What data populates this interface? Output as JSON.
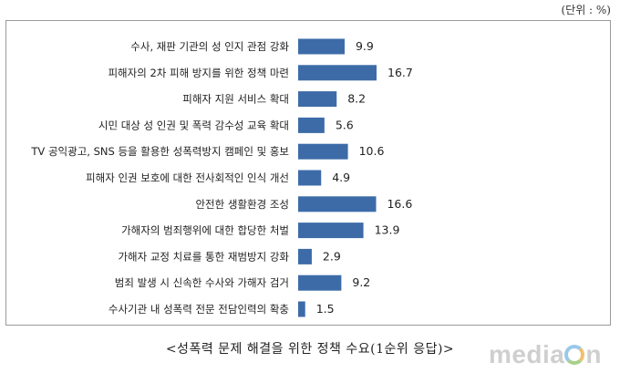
{
  "unit_label": "(단위 : %)",
  "caption": "<성폭력 문제 해결을 위한 정책 수요(1순위 응답)>",
  "watermark": "mediaon",
  "colors": {
    "bar": "#3d6ba8",
    "border": "#9a9a9a",
    "text": "#222222"
  },
  "chart_data": {
    "type": "bar",
    "orientation": "horizontal",
    "title": "성폭력 문제 해결을 위한 정책 수요(1순위 응답)",
    "xlabel": "",
    "ylabel": "",
    "unit": "%",
    "xlim": [
      0,
      20
    ],
    "categories": [
      "수사, 재판 기관의 성 인지 관점 강화",
      "피해자의 2차 피해 방지를 위한 정책 마련",
      "피해자 지원 서비스 확대",
      "시민 대상 성 인권 및 폭력 감수성 교육 확대",
      "TV 공익광고, SNS 등을 활용한 성폭력방지 캠페인 및 홍보",
      "피해자 인권 보호에 대한 전사회적인 인식 개선",
      "안전한 생활환경 조성",
      "가해자의 범죄행위에 대한 합당한 처벌",
      "가해자 교정 치료를 통한 재범방지 강화",
      "범죄 발생 시 신속한 수사와 가해자 검거",
      "수사기관 내 성폭력 전문 전담인력의 확충"
    ],
    "values": [
      9.9,
      16.7,
      8.2,
      5.6,
      10.6,
      4.9,
      16.6,
      13.9,
      2.9,
      9.2,
      1.5
    ],
    "data_labels": [
      "9.9",
      "16.7",
      "8.2",
      "5.6",
      "10.6",
      "4.9",
      "16.6",
      "13.9",
      "2.9",
      "9.2",
      "1.5"
    ],
    "grid": false,
    "legend": false
  }
}
